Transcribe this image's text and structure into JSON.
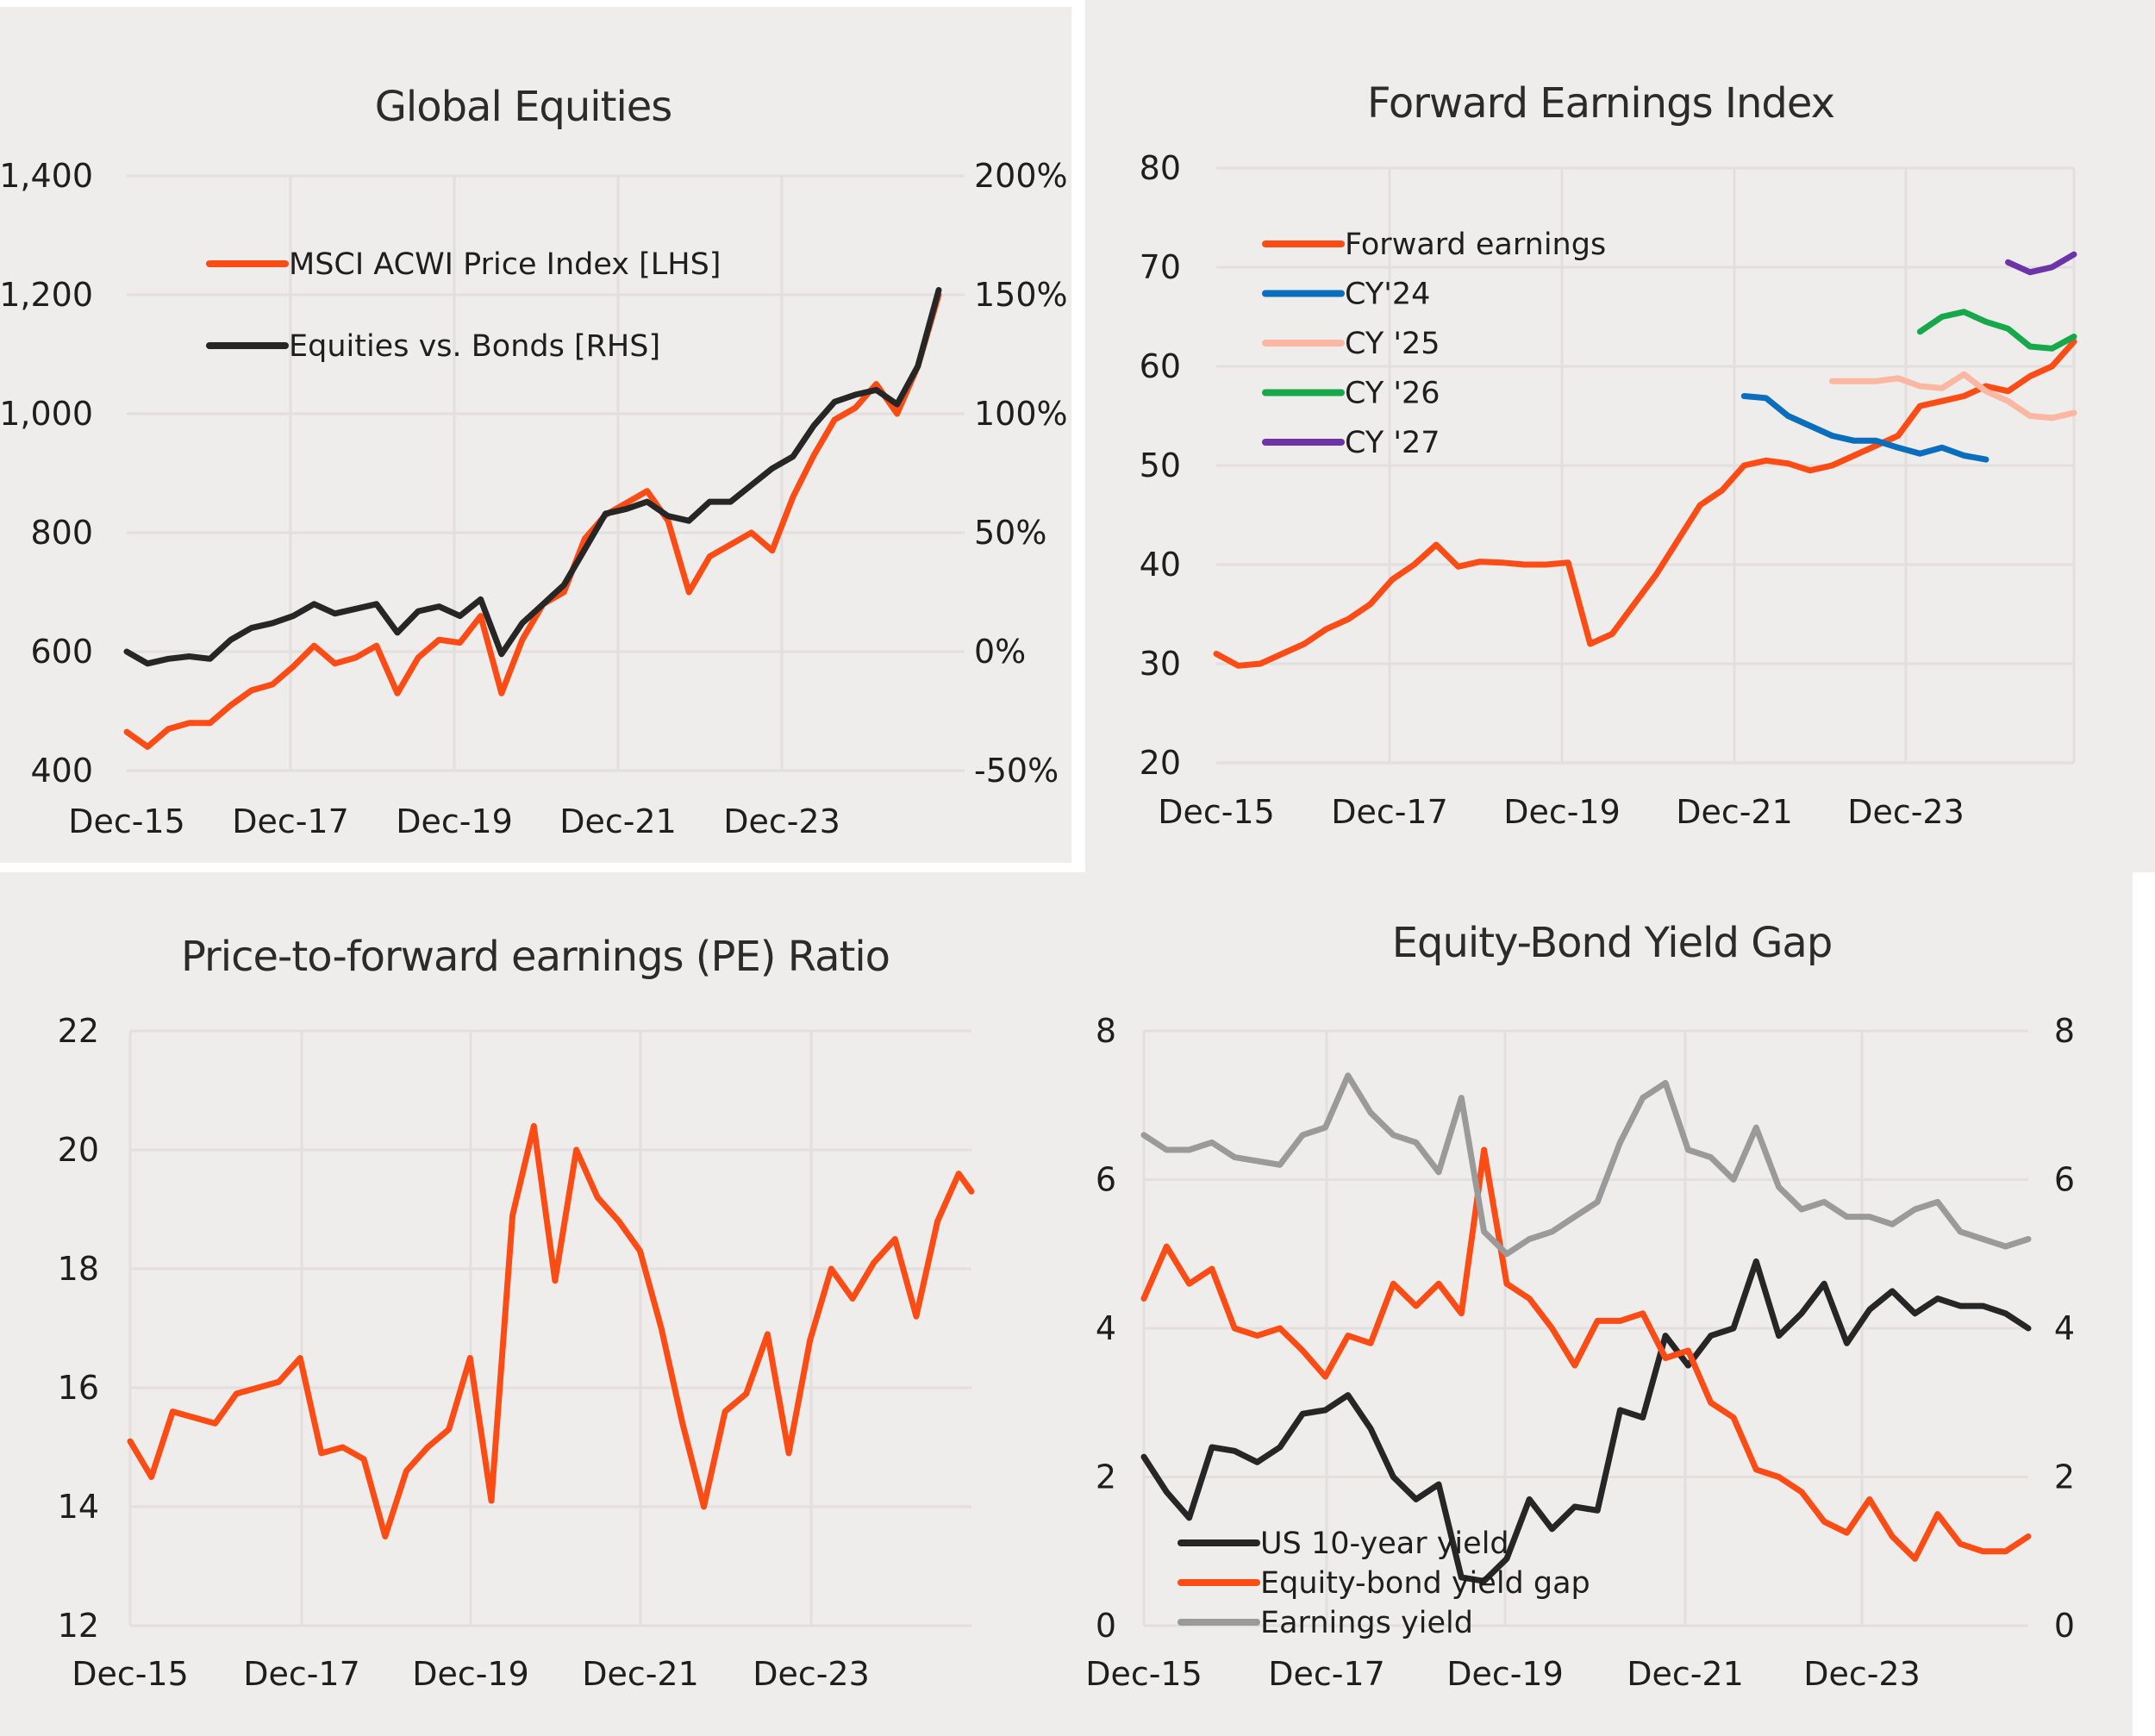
{
  "page": {
    "background": "#efedeb"
  },
  "colors": {
    "orange": "#fc4c15",
    "black": "#262626",
    "blue": "#0a6ebd",
    "salmon": "#fbb7a2",
    "green": "#16a84b",
    "purple": "#6c34a8",
    "gray": "#9a9a9a"
  },
  "chart_data": [
    {
      "id": "global-equities",
      "type": "line",
      "title": "Global Equities",
      "x_ticks": [
        "Dec-15",
        "Dec-17",
        "Dec-19",
        "Dec-21",
        "Dec-23"
      ],
      "x_range": [
        0,
        9.75
      ],
      "y_left": {
        "ticks": [
          "400",
          "600",
          "800",
          "1,000",
          "1,200",
          "1,400"
        ],
        "range": [
          400,
          1400
        ]
      },
      "y_right": {
        "ticks": [
          "-50%",
          "0%",
          "50%",
          "100%",
          "150%",
          "200%"
        ],
        "range": [
          -50,
          200
        ]
      },
      "grid": true,
      "legend": {
        "placement": "top-left",
        "entries": [
          "MSCI ACWI Price Index [LHS]",
          "Equities vs. Bonds [RHS]"
        ]
      },
      "series": [
        {
          "name": "MSCI ACWI Price Index [LHS]",
          "axis": "left",
          "color": "orange",
          "x": [
            0,
            0.25,
            0.5,
            0.75,
            1,
            1.25,
            1.5,
            1.75,
            2,
            2.25,
            2.5,
            2.75,
            3,
            3.25,
            3.5,
            3.75,
            4,
            4.25,
            4.5,
            4.75,
            5,
            5.25,
            5.5,
            5.75,
            6,
            6.25,
            6.5,
            6.75,
            7,
            7.25,
            7.5,
            7.75,
            8,
            8.25,
            8.5,
            8.75,
            9,
            9.25,
            9.5,
            9.75
          ],
          "values": [
            465,
            440,
            470,
            480,
            480,
            510,
            535,
            545,
            575,
            610,
            580,
            590,
            610,
            530,
            590,
            620,
            615,
            660,
            530,
            620,
            680,
            700,
            790,
            830,
            850,
            870,
            820,
            700,
            760,
            780,
            800,
            770,
            860,
            930,
            990,
            1010,
            1050,
            1000,
            1080,
            1200
          ]
        },
        {
          "name": "Equities vs. Bonds [RHS]",
          "axis": "right",
          "color": "black",
          "x": [
            0,
            0.25,
            0.5,
            0.75,
            1,
            1.25,
            1.5,
            1.75,
            2,
            2.25,
            2.5,
            2.75,
            3,
            3.25,
            3.5,
            3.75,
            4,
            4.25,
            4.5,
            4.75,
            5,
            5.25,
            5.5,
            5.75,
            6,
            6.25,
            6.5,
            6.75,
            7,
            7.25,
            7.5,
            7.75,
            8,
            8.25,
            8.5,
            8.75,
            9,
            9.25,
            9.5,
            9.75
          ],
          "values": [
            0,
            -5,
            -3,
            -2,
            -3,
            5,
            10,
            12,
            15,
            20,
            16,
            18,
            20,
            8,
            17,
            19,
            15,
            22,
            -1,
            12,
            20,
            28,
            43,
            58,
            60,
            63,
            57,
            55,
            63,
            63,
            70,
            77,
            82,
            95,
            105,
            108,
            110,
            104,
            120,
            152
          ]
        }
      ]
    },
    {
      "id": "forward-earnings-index",
      "type": "line",
      "title": "Forward Earnings Index",
      "x_ticks": [
        "Dec-15",
        "Dec-17",
        "Dec-19",
        "Dec-21",
        "Dec-23"
      ],
      "x_range": [
        0,
        9.75
      ],
      "y_left": {
        "ticks": [
          "20",
          "30",
          "40",
          "50",
          "60",
          "70",
          "80"
        ],
        "range": [
          20,
          80
        ]
      },
      "grid": true,
      "legend": {
        "placement": "top-left",
        "entries": [
          "Forward earnings",
          "CY'24",
          "CY '25",
          "CY '26",
          "CY '27"
        ]
      },
      "series": [
        {
          "name": "Forward earnings",
          "color": "orange",
          "x": [
            0,
            0.25,
            0.5,
            0.75,
            1,
            1.25,
            1.5,
            1.75,
            2,
            2.25,
            2.5,
            2.75,
            3,
            3.25,
            3.5,
            3.75,
            4,
            4.25,
            4.5,
            4.75,
            5,
            5.25,
            5.5,
            5.75,
            6,
            6.25,
            6.5,
            6.75,
            7,
            7.25,
            7.5,
            7.75,
            8,
            8.25,
            8.5,
            8.75,
            9,
            9.25,
            9.5,
            9.75
          ],
          "values": [
            31,
            29.8,
            30,
            31,
            32,
            33.5,
            34.5,
            36,
            38.5,
            40,
            42,
            39.8,
            40.3,
            40.2,
            40.0,
            40.0,
            40.2,
            32,
            33,
            36,
            39,
            42.5,
            46,
            47.5,
            50,
            50.5,
            50.2,
            49.5,
            50,
            51,
            52,
            53,
            56,
            56.5,
            57,
            58,
            57.5,
            59,
            60,
            62.5
          ]
        },
        {
          "name": "CY'24",
          "color": "blue",
          "x": [
            6,
            6.25,
            6.5,
            6.75,
            7,
            7.25,
            7.5,
            7.75,
            8,
            8.25,
            8.5,
            8.75
          ],
          "values": [
            57,
            56.8,
            55,
            54,
            53,
            52.5,
            52.5,
            51.8,
            51.2,
            51.8,
            51,
            50.6
          ]
        },
        {
          "name": "CY '25",
          "color": "salmon",
          "x": [
            7,
            7.25,
            7.5,
            7.75,
            8,
            8.25,
            8.5,
            8.75,
            9,
            9.25,
            9.5,
            9.75
          ],
          "values": [
            58.5,
            58.5,
            58.5,
            58.8,
            58,
            57.8,
            59.2,
            57.5,
            56.5,
            55,
            54.8,
            55.3
          ]
        },
        {
          "name": "CY '26",
          "color": "green",
          "x": [
            8,
            8.25,
            8.5,
            8.75,
            9,
            9.25,
            9.5,
            9.75
          ],
          "values": [
            63.5,
            65,
            65.5,
            64.5,
            63.8,
            62,
            61.8,
            63
          ]
        },
        {
          "name": "CY '27",
          "color": "purple",
          "x": [
            9,
            9.25,
            9.5,
            9.75
          ],
          "values": [
            70.5,
            69.5,
            70,
            71.3
          ]
        }
      ]
    },
    {
      "id": "pe-ratio",
      "type": "line",
      "title": "Price-to-forward earnings (PE) Ratio",
      "x_ticks": [
        "Dec-15",
        "Dec-17",
        "Dec-19",
        "Dec-21",
        "Dec-23"
      ],
      "x_range": [
        0,
        9.9
      ],
      "y_left": {
        "ticks": [
          "12",
          "14",
          "16",
          "18",
          "20",
          "22"
        ],
        "range": [
          12,
          22
        ]
      },
      "grid": true,
      "series": [
        {
          "name": "PE Ratio",
          "color": "orange",
          "x": [
            0,
            0.25,
            0.5,
            0.75,
            1,
            1.25,
            1.5,
            1.75,
            2,
            2.25,
            2.5,
            2.75,
            3,
            3.25,
            3.5,
            3.75,
            4,
            4.25,
            4.5,
            4.75,
            5,
            5.25,
            5.5,
            5.75,
            6,
            6.25,
            6.5,
            6.75,
            7,
            7.25,
            7.5,
            7.75,
            8,
            8.25,
            8.5,
            8.75,
            9,
            9.25,
            9.5,
            9.75,
            9.9
          ],
          "values": [
            15.1,
            14.5,
            15.6,
            15.5,
            15.4,
            15.9,
            16.0,
            16.1,
            16.5,
            14.9,
            15.0,
            14.8,
            13.5,
            14.6,
            15.0,
            15.3,
            16.5,
            14.1,
            18.9,
            20.4,
            17.8,
            20.0,
            19.2,
            18.8,
            18.3,
            17.0,
            15.4,
            14.0,
            15.6,
            15.9,
            16.9,
            14.9,
            16.8,
            18.0,
            17.5,
            18.1,
            18.5,
            17.2,
            18.8,
            19.6,
            19.3
          ]
        }
      ]
    },
    {
      "id": "equity-bond-yield-gap",
      "type": "line",
      "title": "Equity-Bond Yield Gap",
      "x_ticks": [
        "Dec-15",
        "Dec-17",
        "Dec-19",
        "Dec-21",
        "Dec-23"
      ],
      "x_range": [
        0,
        9.75
      ],
      "y_left": {
        "ticks": [
          "0",
          "2",
          "4",
          "6",
          "8"
        ],
        "range": [
          0,
          8
        ]
      },
      "y_right": {
        "ticks": [
          "0",
          "2",
          "4",
          "6",
          "8"
        ],
        "range": [
          0,
          8
        ]
      },
      "grid": true,
      "legend": {
        "placement": "bottom-left",
        "entries": [
          "US 10-year yield",
          "Equity-bond yield gap",
          "Earnings yield"
        ]
      },
      "series": [
        {
          "name": "US 10-year yield",
          "color": "black",
          "x": [
            0,
            0.25,
            0.5,
            0.75,
            1,
            1.25,
            1.5,
            1.75,
            2,
            2.25,
            2.5,
            2.75,
            3,
            3.25,
            3.5,
            3.75,
            4,
            4.25,
            4.5,
            4.75,
            5,
            5.25,
            5.5,
            5.75,
            6,
            6.25,
            6.5,
            6.75,
            7,
            7.25,
            7.5,
            7.75,
            8,
            8.25,
            8.5,
            8.75,
            9,
            9.25,
            9.5,
            9.75
          ],
          "values": [
            2.27,
            1.8,
            1.45,
            2.4,
            2.35,
            2.2,
            2.4,
            2.85,
            2.9,
            3.1,
            2.65,
            2.0,
            1.7,
            1.9,
            0.65,
            0.6,
            0.9,
            1.7,
            1.3,
            1.6,
            1.55,
            2.9,
            2.8,
            3.9,
            3.5,
            3.9,
            4.0,
            4.9,
            3.9,
            4.2,
            4.6,
            3.8,
            4.25,
            4.5,
            4.2,
            4.4,
            4.3,
            4.3,
            4.2,
            4.0
          ]
        },
        {
          "name": "Equity-bond yield gap",
          "color": "orange",
          "x": [
            0,
            0.25,
            0.5,
            0.75,
            1,
            1.25,
            1.5,
            1.75,
            2,
            2.25,
            2.5,
            2.75,
            3,
            3.25,
            3.5,
            3.75,
            4,
            4.25,
            4.5,
            4.75,
            5,
            5.25,
            5.5,
            5.75,
            6,
            6.25,
            6.5,
            6.75,
            7,
            7.25,
            7.5,
            7.75,
            8,
            8.25,
            8.5,
            8.75,
            9,
            9.25,
            9.5,
            9.75
          ],
          "values": [
            4.4,
            5.1,
            4.6,
            4.8,
            4.0,
            3.9,
            4.0,
            3.7,
            3.35,
            3.9,
            3.8,
            4.6,
            4.3,
            4.6,
            4.2,
            6.4,
            4.6,
            4.4,
            4.0,
            3.5,
            4.1,
            4.1,
            4.2,
            3.6,
            3.7,
            3.0,
            2.8,
            2.1,
            2.0,
            1.8,
            1.4,
            1.25,
            1.7,
            1.2,
            0.9,
            1.5,
            1.1,
            1.0,
            1.0,
            1.2
          ]
        },
        {
          "name": "Earnings yield",
          "color": "gray",
          "x": [
            0,
            0.25,
            0.5,
            0.75,
            1,
            1.25,
            1.5,
            1.75,
            2,
            2.25,
            2.5,
            2.75,
            3,
            3.25,
            3.5,
            3.75,
            4,
            4.25,
            4.5,
            4.75,
            5,
            5.25,
            5.5,
            5.75,
            6,
            6.25,
            6.5,
            6.75,
            7,
            7.25,
            7.5,
            7.75,
            8,
            8.25,
            8.5,
            8.75,
            9,
            9.25,
            9.5,
            9.75
          ],
          "values": [
            6.6,
            6.4,
            6.4,
            6.5,
            6.3,
            6.25,
            6.2,
            6.6,
            6.7,
            7.4,
            6.9,
            6.6,
            6.5,
            6.1,
            7.1,
            5.3,
            5.0,
            5.2,
            5.3,
            5.5,
            5.7,
            6.5,
            7.1,
            7.3,
            6.4,
            6.3,
            6.0,
            6.7,
            5.9,
            5.6,
            5.7,
            5.5,
            5.5,
            5.4,
            5.6,
            5.7,
            5.3,
            5.2,
            5.1,
            5.2
          ]
        }
      ]
    }
  ]
}
